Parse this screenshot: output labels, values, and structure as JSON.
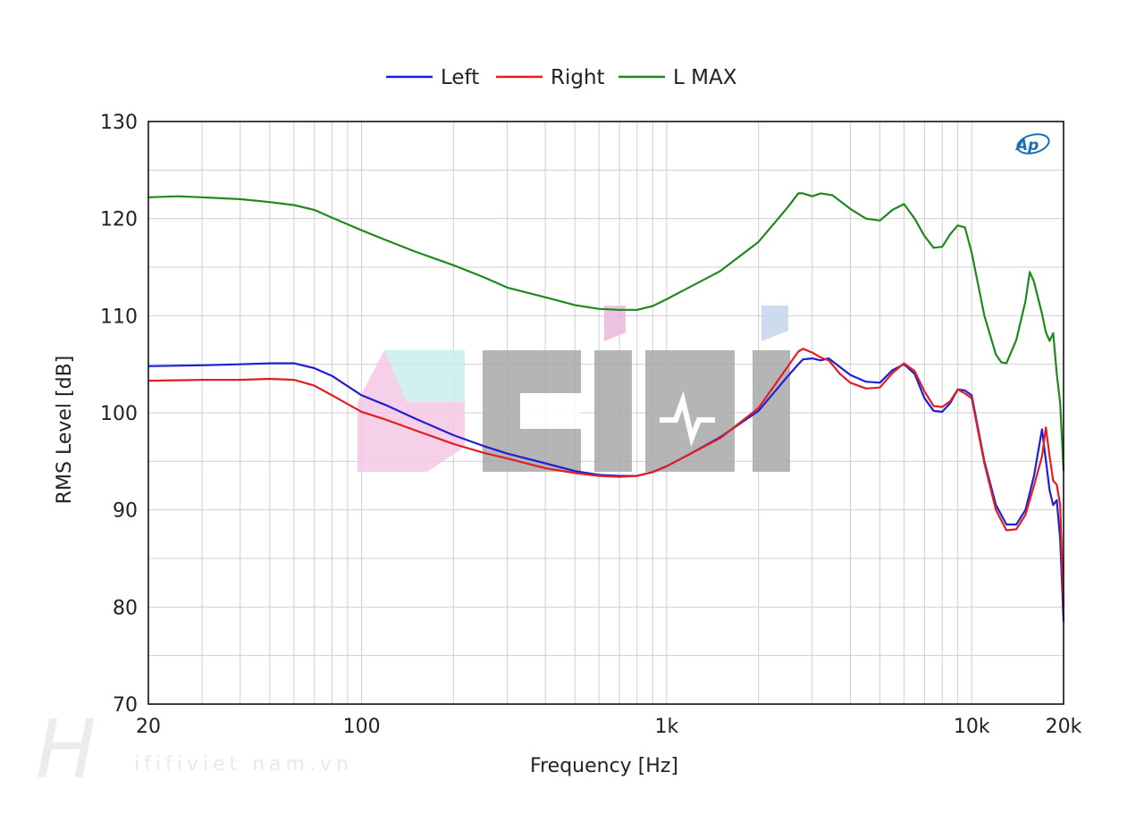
{
  "chart_data": {
    "type": "line",
    "title": "",
    "xlabel": "Frequency [Hz]",
    "ylabel": "RMS Level [dB]",
    "xscale": "log",
    "xlim": [
      20,
      20000
    ],
    "ylim": [
      70,
      130
    ],
    "yticks": [
      "70",
      "80",
      "90",
      "100",
      "110",
      "120",
      "130"
    ],
    "xtick_values": [
      20,
      100,
      1000,
      10000,
      20000
    ],
    "xticks": [
      "20",
      "100",
      "1k",
      "10k",
      "20k"
    ],
    "grid": true,
    "legend_position": "top-center",
    "series": [
      {
        "name": "Left",
        "color": "#1f1fd6",
        "points": [
          [
            20,
            104.8
          ],
          [
            30,
            104.9
          ],
          [
            40,
            105.0
          ],
          [
            50,
            105.1
          ],
          [
            60,
            105.1
          ],
          [
            70,
            104.6
          ],
          [
            80,
            103.8
          ],
          [
            100,
            101.8
          ],
          [
            120,
            100.8
          ],
          [
            150,
            99.4
          ],
          [
            200,
            97.7
          ],
          [
            250,
            96.6
          ],
          [
            300,
            95.8
          ],
          [
            400,
            94.8
          ],
          [
            500,
            94.0
          ],
          [
            600,
            93.6
          ],
          [
            700,
            93.5
          ],
          [
            800,
            93.5
          ],
          [
            900,
            93.9
          ],
          [
            1000,
            94.5
          ],
          [
            1200,
            95.8
          ],
          [
            1500,
            97.5
          ],
          [
            2000,
            100.2
          ],
          [
            2500,
            103.8
          ],
          [
            2700,
            105.0
          ],
          [
            2800,
            105.5
          ],
          [
            3000,
            105.6
          ],
          [
            3200,
            105.4
          ],
          [
            3400,
            105.6
          ],
          [
            3700,
            104.7
          ],
          [
            4000,
            103.9
          ],
          [
            4500,
            103.2
          ],
          [
            5000,
            103.1
          ],
          [
            5500,
            104.4
          ],
          [
            6000,
            105.0
          ],
          [
            6500,
            104.0
          ],
          [
            7000,
            101.5
          ],
          [
            7500,
            100.2
          ],
          [
            8000,
            100.1
          ],
          [
            8500,
            101.0
          ],
          [
            9000,
            102.4
          ],
          [
            9500,
            102.3
          ],
          [
            10000,
            101.8
          ],
          [
            11000,
            95.0
          ],
          [
            12000,
            90.5
          ],
          [
            13000,
            88.5
          ],
          [
            14000,
            88.5
          ],
          [
            15000,
            90.0
          ],
          [
            16000,
            93.5
          ],
          [
            17000,
            98.3
          ],
          [
            18000,
            92.0
          ],
          [
            18500,
            90.5
          ],
          [
            19000,
            91.0
          ],
          [
            19500,
            87.0
          ],
          [
            20000,
            78.5
          ]
        ]
      },
      {
        "name": "Right",
        "color": "#e02020",
        "points": [
          [
            20,
            103.3
          ],
          [
            30,
            103.4
          ],
          [
            40,
            103.4
          ],
          [
            50,
            103.5
          ],
          [
            60,
            103.4
          ],
          [
            70,
            102.8
          ],
          [
            80,
            101.8
          ],
          [
            100,
            100.1
          ],
          [
            120,
            99.3
          ],
          [
            150,
            98.2
          ],
          [
            200,
            96.8
          ],
          [
            250,
            95.9
          ],
          [
            300,
            95.3
          ],
          [
            400,
            94.3
          ],
          [
            500,
            93.8
          ],
          [
            600,
            93.5
          ],
          [
            700,
            93.4
          ],
          [
            800,
            93.5
          ],
          [
            900,
            93.9
          ],
          [
            1000,
            94.5
          ],
          [
            1200,
            95.8
          ],
          [
            1500,
            97.4
          ],
          [
            2000,
            100.5
          ],
          [
            2500,
            104.8
          ],
          [
            2700,
            106.3
          ],
          [
            2800,
            106.6
          ],
          [
            3000,
            106.2
          ],
          [
            3200,
            105.7
          ],
          [
            3400,
            105.4
          ],
          [
            3700,
            104.0
          ],
          [
            4000,
            103.1
          ],
          [
            4500,
            102.5
          ],
          [
            5000,
            102.6
          ],
          [
            5500,
            104.1
          ],
          [
            6000,
            105.1
          ],
          [
            6500,
            104.3
          ],
          [
            7000,
            102.2
          ],
          [
            7500,
            100.7
          ],
          [
            8000,
            100.6
          ],
          [
            8500,
            101.2
          ],
          [
            9000,
            102.4
          ],
          [
            9500,
            102.0
          ],
          [
            10000,
            101.5
          ],
          [
            11000,
            94.8
          ],
          [
            12000,
            90.0
          ],
          [
            13000,
            87.9
          ],
          [
            14000,
            88.0
          ],
          [
            15000,
            89.5
          ],
          [
            16000,
            92.5
          ],
          [
            17000,
            95.5
          ],
          [
            17500,
            98.5
          ],
          [
            18000,
            95.5
          ],
          [
            18500,
            93.0
          ],
          [
            19000,
            92.6
          ],
          [
            19500,
            90.5
          ],
          [
            20000,
            80.0
          ]
        ]
      },
      {
        "name": "L MAX",
        "color": "#1e8a1e",
        "points": [
          [
            20,
            122.2
          ],
          [
            25,
            122.3
          ],
          [
            30,
            122.2
          ],
          [
            40,
            122.0
          ],
          [
            50,
            121.7
          ],
          [
            60,
            121.4
          ],
          [
            70,
            120.9
          ],
          [
            80,
            120.1
          ],
          [
            100,
            118.8
          ],
          [
            120,
            117.8
          ],
          [
            150,
            116.6
          ],
          [
            200,
            115.2
          ],
          [
            250,
            114.0
          ],
          [
            300,
            112.9
          ],
          [
            400,
            111.9
          ],
          [
            500,
            111.1
          ],
          [
            600,
            110.7
          ],
          [
            700,
            110.6
          ],
          [
            800,
            110.6
          ],
          [
            900,
            111.0
          ],
          [
            1000,
            111.7
          ],
          [
            1200,
            113.0
          ],
          [
            1500,
            114.6
          ],
          [
            2000,
            117.6
          ],
          [
            2500,
            121.2
          ],
          [
            2700,
            122.6
          ],
          [
            2800,
            122.6
          ],
          [
            3000,
            122.3
          ],
          [
            3200,
            122.6
          ],
          [
            3500,
            122.4
          ],
          [
            4000,
            121.0
          ],
          [
            4500,
            120.0
          ],
          [
            5000,
            119.8
          ],
          [
            5500,
            120.9
          ],
          [
            6000,
            121.5
          ],
          [
            6500,
            120.0
          ],
          [
            7000,
            118.2
          ],
          [
            7500,
            117.0
          ],
          [
            8000,
            117.1
          ],
          [
            8500,
            118.4
          ],
          [
            9000,
            119.3
          ],
          [
            9500,
            119.1
          ],
          [
            10000,
            116.5
          ],
          [
            11000,
            110.0
          ],
          [
            12000,
            106.0
          ],
          [
            12500,
            105.2
          ],
          [
            13000,
            105.1
          ],
          [
            14000,
            107.5
          ],
          [
            15000,
            111.5
          ],
          [
            15500,
            114.5
          ],
          [
            16000,
            113.5
          ],
          [
            17000,
            110.2
          ],
          [
            17500,
            108.3
          ],
          [
            18000,
            107.4
          ],
          [
            18500,
            108.2
          ],
          [
            19000,
            104.0
          ],
          [
            19500,
            101.0
          ],
          [
            20000,
            94.0
          ]
        ]
      }
    ]
  },
  "watermark": {
    "text": "ififiviet nam.vn"
  },
  "colors": {
    "grid": "#cfcfcf",
    "axis": "#000000",
    "logo": "#1a6fb5",
    "watermark_gray": "#a9a9a9",
    "watermark_pink": "#ee9fd3",
    "watermark_teal": "#9ee3e0"
  }
}
